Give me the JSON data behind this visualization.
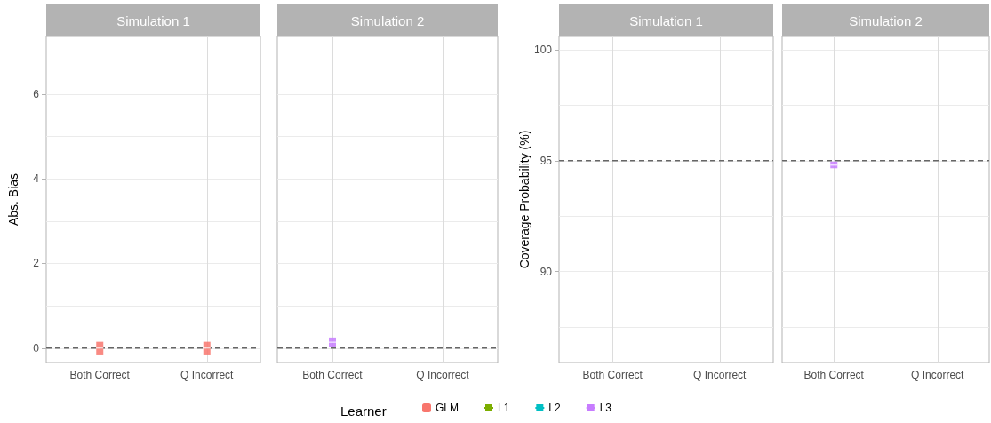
{
  "chart_data": [
    {
      "type": "box",
      "title": "Simulation 1",
      "ylabel": "Abs. Bias",
      "categories": [
        "Both Correct",
        "Q Incorrect"
      ],
      "ylim": [
        -0.34,
        7.36
      ],
      "yticks": [
        0,
        {
          "value": 1,
          "label": null
        },
        2,
        {
          "value": 3,
          "label": null
        },
        4,
        {
          "value": 5,
          "label": null
        },
        6,
        {
          "value": 7,
          "label": null
        }
      ],
      "grid": true,
      "legend": "bottom",
      "legend_title": "Learner",
      "ref_lines": [
        {
          "axis": "y",
          "value": 0,
          "line_style": "dashed",
          "color": "#666666"
        }
      ],
      "series": [
        {
          "name": "GLM",
          "color": "#f8766d",
          "boxes": [
            {
              "low": -0.15,
              "q1": -0.15,
              "median": 0,
              "q3": 0.15,
              "high": 0.15
            },
            {
              "low": -0.15,
              "q1": -0.15,
              "median": 0,
              "q3": 0.15,
              "high": 0.15
            }
          ]
        },
        {
          "name": "L1",
          "color": "#7cae00",
          "boxes": [
            null,
            null
          ]
        },
        {
          "name": "L2",
          "color": "#00bfc4",
          "boxes": [
            null,
            null
          ]
        },
        {
          "name": "L3",
          "color": "#c77cff",
          "boxes": [
            null,
            null
          ]
        }
      ]
    },
    {
      "type": "box",
      "title": "Simulation 2",
      "categories": [
        "Both Correct",
        "Q Incorrect"
      ],
      "ylim": [
        -0.34,
        7.36
      ],
      "yticks": [
        0,
        {
          "value": 1,
          "label": null
        },
        2,
        {
          "value": 3,
          "label": null
        },
        4,
        {
          "value": 5,
          "label": null
        },
        6,
        {
          "value": 7,
          "label": null
        }
      ],
      "grid": true,
      "tick_labels": "x",
      "ref_lines": [
        {
          "axis": "y",
          "value": 0,
          "line_style": "dashed",
          "color": "#666666"
        }
      ],
      "series": [
        {
          "color": "#c77cff",
          "boxes": [
            {
              "low": 0.03,
              "q1": 0.03,
              "median": 0.14,
              "q3": 0.25,
              "high": 0.25
            },
            null
          ]
        }
      ]
    },
    {
      "type": "box",
      "title": "Simulation 1",
      "ylabel": "Coverage Probability (%)",
      "categories": [
        "Both Correct",
        "Q Incorrect"
      ],
      "ylim": [
        85.9,
        100.6
      ],
      "yticks": [
        {
          "value": 87.5,
          "label": null
        },
        90,
        {
          "value": 92.5,
          "label": null
        },
        95,
        {
          "value": 97.5,
          "label": null
        },
        100
      ],
      "grid": true,
      "ref_lines": [
        {
          "axis": "y",
          "value": 95,
          "line_style": "dashed",
          "color": "#666666"
        }
      ]
    },
    {
      "type": "box",
      "title": "Simulation 2",
      "categories": [
        "Both Correct",
        "Q Incorrect"
      ],
      "ylim": [
        85.9,
        100.6
      ],
      "yticks": [
        {
          "value": 87.5,
          "label": null
        },
        90,
        {
          "value": 92.5,
          "label": null
        },
        95,
        {
          "value": 97.5,
          "label": null
        },
        100
      ],
      "grid": true,
      "tick_labels": "x",
      "ref_lines": [
        {
          "axis": "y",
          "value": 95,
          "line_style": "dashed",
          "color": "#666666"
        }
      ],
      "series": [
        {
          "color": "#c77cff",
          "boxes": [
            {
              "low": 94.66,
              "q1": 94.66,
              "median": 94.8,
              "q3": 94.96,
              "high": 94.96
            },
            null
          ]
        }
      ]
    }
  ]
}
